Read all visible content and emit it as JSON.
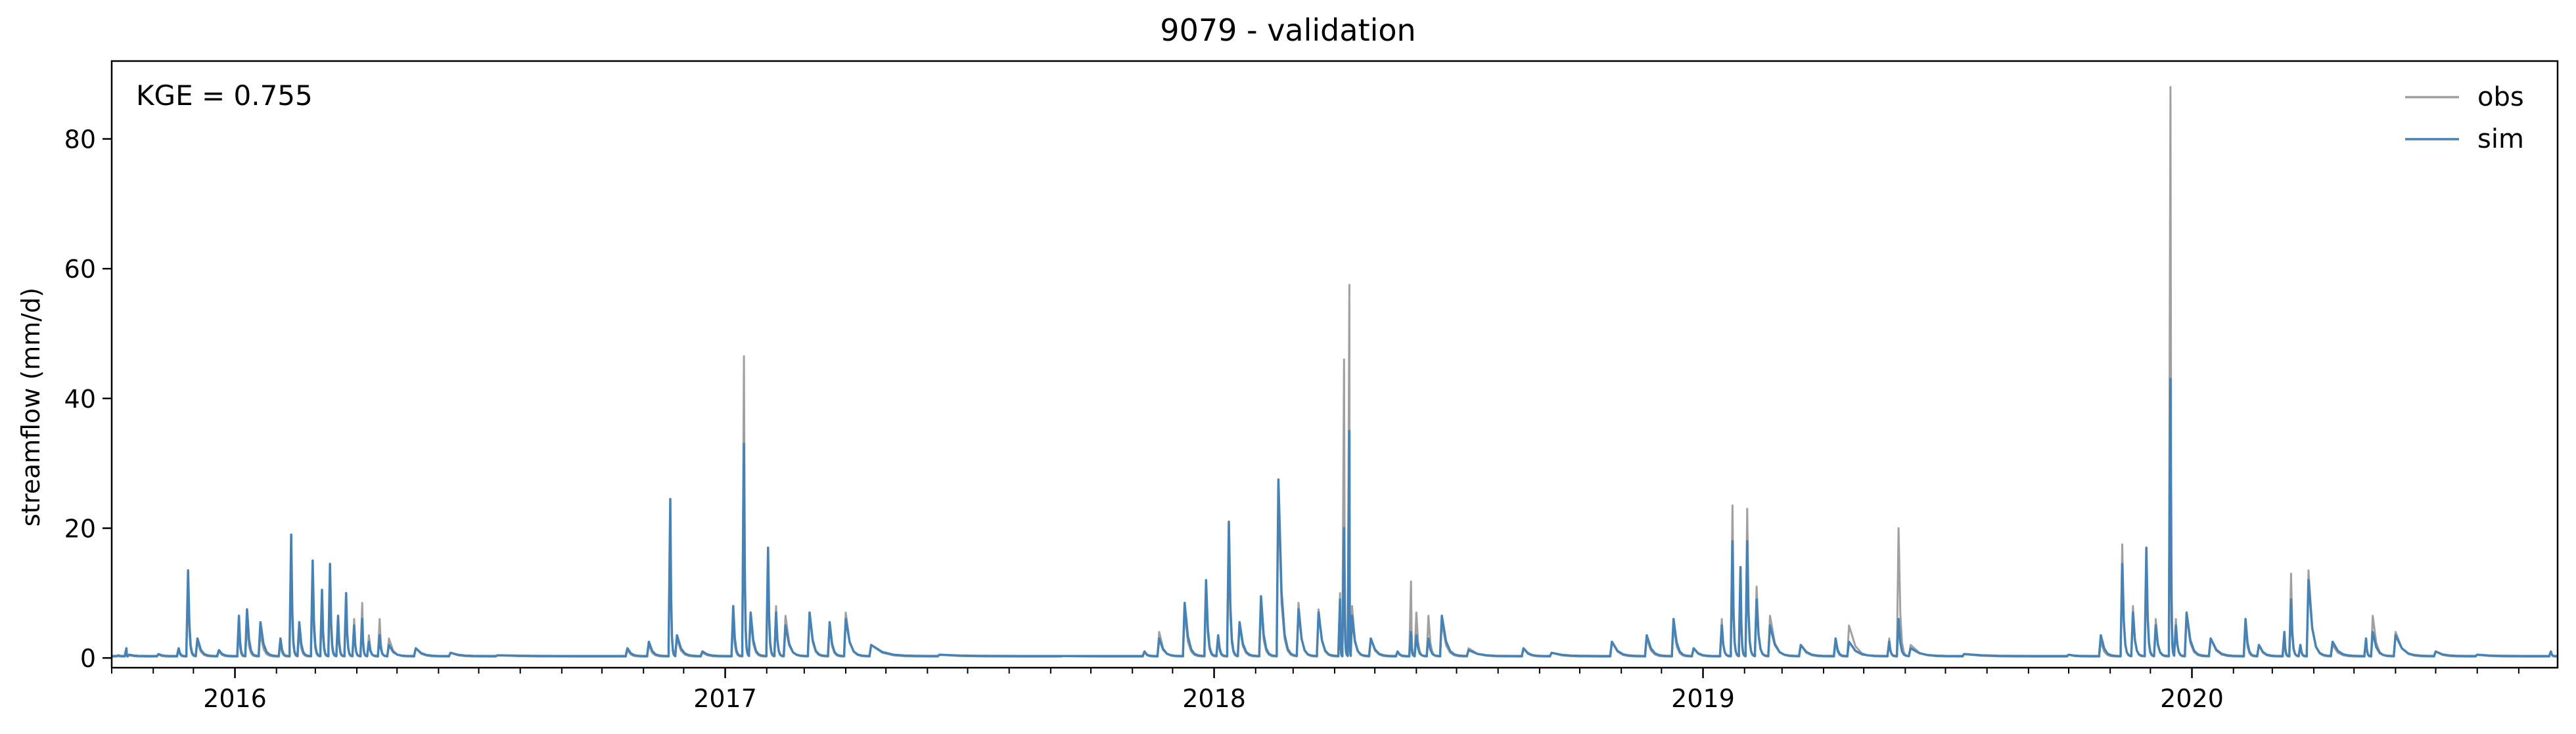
{
  "chart_data": {
    "type": "line",
    "title": "9079 - validation",
    "xlabel": "",
    "ylabel": "streamflow (mm/d)",
    "annotation": "KGE = 0.755",
    "x_range": [
      "2015-10-01",
      "2020-09-30"
    ],
    "ylim": [
      -1.5,
      92
    ],
    "y_ticks": [
      0,
      20,
      40,
      60,
      80
    ],
    "x_tick_labels": [
      "2016",
      "2017",
      "2018",
      "2019",
      "2020"
    ],
    "x_tick_dates": [
      "2016-01-01",
      "2017-01-01",
      "2018-01-01",
      "2019-01-01",
      "2020-01-01"
    ],
    "legend_position": "top-right",
    "grid": false,
    "baseline": {
      "obs": 0.2,
      "sim": 0.3
    },
    "series": [
      {
        "name": "obs",
        "color": "#a0a0a0",
        "points": [
          [
            "2015-10-06",
            0.3
          ],
          [
            "2015-10-12",
            1.2
          ],
          [
            "2015-10-14",
            0.4
          ],
          [
            "2015-11-05",
            0.5
          ],
          [
            "2015-11-20",
            1.2
          ],
          [
            "2015-11-27",
            11.5
          ],
          [
            "2015-12-04",
            2.5
          ],
          [
            "2015-12-20",
            1.0
          ],
          [
            "2016-01-04",
            4.5
          ],
          [
            "2016-01-10",
            5.0
          ],
          [
            "2016-01-20",
            3.8
          ],
          [
            "2016-02-04",
            2.2
          ],
          [
            "2016-02-12",
            16.5
          ],
          [
            "2016-02-18",
            4.0
          ],
          [
            "2016-02-28",
            12.0
          ],
          [
            "2016-03-06",
            9.0
          ],
          [
            "2016-03-12",
            11.5
          ],
          [
            "2016-03-18",
            5.5
          ],
          [
            "2016-03-24",
            9.5
          ],
          [
            "2016-03-30",
            6.0
          ],
          [
            "2016-04-05",
            8.5
          ],
          [
            "2016-04-10",
            3.5
          ],
          [
            "2016-04-18",
            6.0
          ],
          [
            "2016-04-25",
            3.0
          ],
          [
            "2016-05-15",
            1.5
          ],
          [
            "2016-06-10",
            0.8
          ],
          [
            "2016-07-15",
            0.4
          ],
          [
            "2016-10-20",
            1.2
          ],
          [
            "2016-11-05",
            2.0
          ],
          [
            "2016-11-21",
            23.0
          ],
          [
            "2016-11-26",
            3.0
          ],
          [
            "2016-12-15",
            0.8
          ],
          [
            "2017-01-07",
            6.0
          ],
          [
            "2017-01-15",
            46.5
          ],
          [
            "2017-01-20",
            6.0
          ],
          [
            "2017-02-02",
            15.5
          ],
          [
            "2017-02-08",
            8.0
          ],
          [
            "2017-02-15",
            6.5
          ],
          [
            "2017-03-05",
            7.0
          ],
          [
            "2017-03-20",
            5.0
          ],
          [
            "2017-04-01",
            7.0
          ],
          [
            "2017-04-20",
            2.0
          ],
          [
            "2017-06-10",
            0.5
          ],
          [
            "2017-09-10",
            0.3
          ],
          [
            "2017-11-10",
            1.0
          ],
          [
            "2017-11-21",
            4.0
          ],
          [
            "2017-12-10",
            7.0
          ],
          [
            "2017-12-26",
            10.5
          ],
          [
            "2018-01-04",
            3.0
          ],
          [
            "2018-01-12",
            18.5
          ],
          [
            "2018-01-20",
            5.0
          ],
          [
            "2018-02-05",
            8.0
          ],
          [
            "2018-02-18",
            25.0
          ],
          [
            "2018-03-05",
            8.5
          ],
          [
            "2018-03-20",
            7.5
          ],
          [
            "2018-04-05",
            10.0
          ],
          [
            "2018-04-08",
            46.0
          ],
          [
            "2018-04-12",
            57.5
          ],
          [
            "2018-04-14",
            8.0
          ],
          [
            "2018-04-28",
            3.0
          ],
          [
            "2018-05-18",
            1.0
          ],
          [
            "2018-05-28",
            11.8
          ],
          [
            "2018-06-01",
            7.0
          ],
          [
            "2018-06-10",
            6.5
          ],
          [
            "2018-06-20",
            5.5
          ],
          [
            "2018-07-10",
            1.5
          ],
          [
            "2018-08-20",
            1.5
          ],
          [
            "2018-09-10",
            0.8
          ],
          [
            "2018-10-25",
            2.5
          ],
          [
            "2018-11-20",
            3.0
          ],
          [
            "2018-12-10",
            5.0
          ],
          [
            "2018-12-25",
            1.5
          ],
          [
            "2019-01-15",
            6.0
          ],
          [
            "2019-01-23",
            23.5
          ],
          [
            "2019-01-29",
            13.0
          ],
          [
            "2019-02-03",
            23.0
          ],
          [
            "2019-02-10",
            11.0
          ],
          [
            "2019-02-20",
            6.5
          ],
          [
            "2019-03-15",
            2.0
          ],
          [
            "2019-04-10",
            2.5
          ],
          [
            "2019-04-20",
            5.0
          ],
          [
            "2019-05-20",
            3.0
          ],
          [
            "2019-05-27",
            20.0
          ],
          [
            "2019-06-05",
            2.0
          ],
          [
            "2019-07-15",
            0.6
          ],
          [
            "2019-10-01",
            0.5
          ],
          [
            "2019-10-25",
            2.5
          ],
          [
            "2019-11-10",
            17.5
          ],
          [
            "2019-11-18",
            8.0
          ],
          [
            "2019-11-28",
            16.0
          ],
          [
            "2019-12-05",
            6.0
          ],
          [
            "2019-12-16",
            88.0
          ],
          [
            "2019-12-20",
            6.0
          ],
          [
            "2019-12-28",
            6.5
          ],
          [
            "2020-01-15",
            3.0
          ],
          [
            "2020-02-10",
            5.0
          ],
          [
            "2020-02-20",
            2.0
          ],
          [
            "2020-03-10",
            3.0
          ],
          [
            "2020-03-15",
            13.0
          ],
          [
            "2020-03-22",
            2.0
          ],
          [
            "2020-03-28",
            13.5
          ],
          [
            "2020-04-15",
            2.0
          ],
          [
            "2020-05-10",
            3.0
          ],
          [
            "2020-05-15",
            6.5
          ],
          [
            "2020-06-01",
            4.0
          ],
          [
            "2020-07-01",
            1.0
          ],
          [
            "2020-08-01",
            0.5
          ],
          [
            "2020-09-25",
            1.0
          ]
        ]
      },
      {
        "name": "sim",
        "color": "#4682b4",
        "points": [
          [
            "2015-10-06",
            0.4
          ],
          [
            "2015-10-12",
            1.5
          ],
          [
            "2015-10-14",
            0.5
          ],
          [
            "2015-11-05",
            0.6
          ],
          [
            "2015-11-20",
            1.5
          ],
          [
            "2015-11-27",
            13.5
          ],
          [
            "2015-12-04",
            3.0
          ],
          [
            "2015-12-20",
            1.2
          ],
          [
            "2016-01-04",
            6.5
          ],
          [
            "2016-01-10",
            7.5
          ],
          [
            "2016-01-20",
            5.5
          ],
          [
            "2016-02-04",
            3.0
          ],
          [
            "2016-02-12",
            19.0
          ],
          [
            "2016-02-18",
            5.5
          ],
          [
            "2016-02-28",
            15.0
          ],
          [
            "2016-03-06",
            10.5
          ],
          [
            "2016-03-12",
            14.5
          ],
          [
            "2016-03-18",
            6.5
          ],
          [
            "2016-03-24",
            10.0
          ],
          [
            "2016-03-30",
            5.0
          ],
          [
            "2016-04-05",
            6.0
          ],
          [
            "2016-04-10",
            2.5
          ],
          [
            "2016-04-18",
            3.5
          ],
          [
            "2016-04-25",
            2.0
          ],
          [
            "2016-05-15",
            1.5
          ],
          [
            "2016-06-10",
            0.8
          ],
          [
            "2016-07-15",
            0.4
          ],
          [
            "2016-10-20",
            1.5
          ],
          [
            "2016-11-05",
            2.5
          ],
          [
            "2016-11-21",
            24.5
          ],
          [
            "2016-11-26",
            3.5
          ],
          [
            "2016-12-15",
            1.0
          ],
          [
            "2017-01-07",
            8.0
          ],
          [
            "2017-01-15",
            33.0
          ],
          [
            "2017-01-20",
            7.0
          ],
          [
            "2017-02-02",
            17.0
          ],
          [
            "2017-02-08",
            7.0
          ],
          [
            "2017-02-15",
            5.0
          ],
          [
            "2017-03-05",
            7.0
          ],
          [
            "2017-03-20",
            5.5
          ],
          [
            "2017-04-01",
            6.0
          ],
          [
            "2017-04-20",
            2.0
          ],
          [
            "2017-06-10",
            0.5
          ],
          [
            "2017-09-10",
            0.3
          ],
          [
            "2017-11-10",
            1.0
          ],
          [
            "2017-11-21",
            3.0
          ],
          [
            "2017-12-10",
            8.5
          ],
          [
            "2017-12-26",
            12.0
          ],
          [
            "2018-01-04",
            3.5
          ],
          [
            "2018-01-12",
            21.0
          ],
          [
            "2018-01-20",
            5.5
          ],
          [
            "2018-02-05",
            9.5
          ],
          [
            "2018-02-18",
            27.5
          ],
          [
            "2018-03-05",
            7.5
          ],
          [
            "2018-03-20",
            7.0
          ],
          [
            "2018-04-05",
            9.0
          ],
          [
            "2018-04-08",
            20.0
          ],
          [
            "2018-04-12",
            35.0
          ],
          [
            "2018-04-14",
            6.5
          ],
          [
            "2018-04-28",
            3.0
          ],
          [
            "2018-05-18",
            1.0
          ],
          [
            "2018-05-28",
            4.0
          ],
          [
            "2018-06-01",
            3.5
          ],
          [
            "2018-06-10",
            3.0
          ],
          [
            "2018-06-20",
            6.5
          ],
          [
            "2018-07-10",
            1.2
          ],
          [
            "2018-08-20",
            1.5
          ],
          [
            "2018-09-10",
            0.8
          ],
          [
            "2018-10-25",
            2.5
          ],
          [
            "2018-11-20",
            3.5
          ],
          [
            "2018-12-10",
            6.0
          ],
          [
            "2018-12-25",
            1.5
          ],
          [
            "2019-01-15",
            5.0
          ],
          [
            "2019-01-23",
            18.0
          ],
          [
            "2019-01-29",
            14.0
          ],
          [
            "2019-02-03",
            18.0
          ],
          [
            "2019-02-10",
            9.0
          ],
          [
            "2019-02-20",
            5.0
          ],
          [
            "2019-03-15",
            2.0
          ],
          [
            "2019-04-10",
            3.0
          ],
          [
            "2019-04-20",
            2.5
          ],
          [
            "2019-05-20",
            2.5
          ],
          [
            "2019-05-27",
            6.0
          ],
          [
            "2019-06-05",
            1.5
          ],
          [
            "2019-07-15",
            0.6
          ],
          [
            "2019-10-01",
            0.5
          ],
          [
            "2019-10-25",
            3.5
          ],
          [
            "2019-11-10",
            14.5
          ],
          [
            "2019-11-18",
            7.0
          ],
          [
            "2019-11-28",
            17.0
          ],
          [
            "2019-12-05",
            5.0
          ],
          [
            "2019-12-16",
            43.0
          ],
          [
            "2019-12-20",
            5.0
          ],
          [
            "2019-12-28",
            7.0
          ],
          [
            "2020-01-15",
            3.0
          ],
          [
            "2020-02-10",
            6.0
          ],
          [
            "2020-02-20",
            2.0
          ],
          [
            "2020-03-10",
            4.0
          ],
          [
            "2020-03-15",
            9.0
          ],
          [
            "2020-03-22",
            2.0
          ],
          [
            "2020-03-28",
            12.0
          ],
          [
            "2020-04-15",
            2.5
          ],
          [
            "2020-05-10",
            3.0
          ],
          [
            "2020-05-15",
            4.0
          ],
          [
            "2020-06-01",
            3.5
          ],
          [
            "2020-07-01",
            1.0
          ],
          [
            "2020-08-01",
            0.5
          ],
          [
            "2020-09-25",
            1.0
          ]
        ]
      }
    ]
  }
}
